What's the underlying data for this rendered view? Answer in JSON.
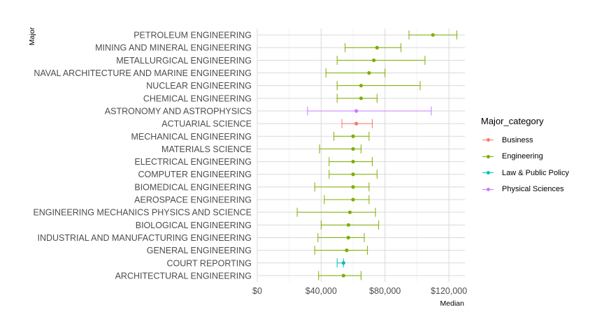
{
  "chart_data": {
    "type": "errorbar-point",
    "xlabel": "Median",
    "ylabel": "Major",
    "xlim": [
      0,
      130000
    ],
    "x_ticks": [
      0,
      40000,
      80000,
      120000
    ],
    "x_tick_labels": [
      "$0",
      "$40,000",
      "$80,000",
      "$120,000"
    ],
    "grid": true,
    "legend_placement": "right",
    "legend_title": "Major_category",
    "categories_legend": [
      {
        "name": "Business",
        "color": "#F8766D"
      },
      {
        "name": "Engineering",
        "color": "#7CAE00"
      },
      {
        "name": "Law & Public Policy",
        "color": "#00BFC4"
      },
      {
        "name": "Physical Sciences",
        "color": "#C77CFF"
      }
    ],
    "rows": [
      {
        "major": "PETROLEUM ENGINEERING",
        "category": "Engineering",
        "median": 110000,
        "low": 95000,
        "high": 125000
      },
      {
        "major": "MINING AND MINERAL ENGINEERING",
        "category": "Engineering",
        "median": 75000,
        "low": 55000,
        "high": 90000
      },
      {
        "major": "METALLURGICAL ENGINEERING",
        "category": "Engineering",
        "median": 73000,
        "low": 50000,
        "high": 105000
      },
      {
        "major": "NAVAL ARCHITECTURE AND MARINE ENGINEERING",
        "category": "Engineering",
        "median": 70000,
        "low": 43000,
        "high": 80000
      },
      {
        "major": "NUCLEAR ENGINEERING",
        "category": "Engineering",
        "median": 65000,
        "low": 50000,
        "high": 102000
      },
      {
        "major": "CHEMICAL ENGINEERING",
        "category": "Engineering",
        "median": 65000,
        "low": 50000,
        "high": 75000
      },
      {
        "major": "ASTRONOMY AND ASTROPHYSICS",
        "category": "Physical Sciences",
        "median": 62000,
        "low": 31500,
        "high": 109000
      },
      {
        "major": "ACTUARIAL SCIENCE",
        "category": "Business",
        "median": 62000,
        "low": 53000,
        "high": 72000
      },
      {
        "major": "MECHANICAL ENGINEERING",
        "category": "Engineering",
        "median": 60000,
        "low": 48000,
        "high": 70000
      },
      {
        "major": "MATERIALS SCIENCE",
        "category": "Engineering",
        "median": 60000,
        "low": 39000,
        "high": 65000
      },
      {
        "major": "ELECTRICAL ENGINEERING",
        "category": "Engineering",
        "median": 60000,
        "low": 45000,
        "high": 72000
      },
      {
        "major": "COMPUTER ENGINEERING",
        "category": "Engineering",
        "median": 60000,
        "low": 45000,
        "high": 75000
      },
      {
        "major": "BIOMEDICAL ENGINEERING",
        "category": "Engineering",
        "median": 60000,
        "low": 36000,
        "high": 70000
      },
      {
        "major": "AEROSPACE ENGINEERING",
        "category": "Engineering",
        "median": 60000,
        "low": 42000,
        "high": 70000
      },
      {
        "major": "ENGINEERING MECHANICS PHYSICS AND SCIENCE",
        "category": "Engineering",
        "median": 58000,
        "low": 25000,
        "high": 74000
      },
      {
        "major": "BIOLOGICAL ENGINEERING",
        "category": "Engineering",
        "median": 57100,
        "low": 40000,
        "high": 76000
      },
      {
        "major": "INDUSTRIAL AND MANUFACTURING ENGINEERING",
        "category": "Engineering",
        "median": 57000,
        "low": 38000,
        "high": 67000
      },
      {
        "major": "GENERAL ENGINEERING",
        "category": "Engineering",
        "median": 56000,
        "low": 36000,
        "high": 69000
      },
      {
        "major": "COURT REPORTING",
        "category": "Law & Public Policy",
        "median": 54000,
        "low": 50000,
        "high": 54000
      },
      {
        "major": "ARCHITECTURAL ENGINEERING",
        "category": "Engineering",
        "median": 54000,
        "low": 38400,
        "high": 65000
      }
    ]
  }
}
